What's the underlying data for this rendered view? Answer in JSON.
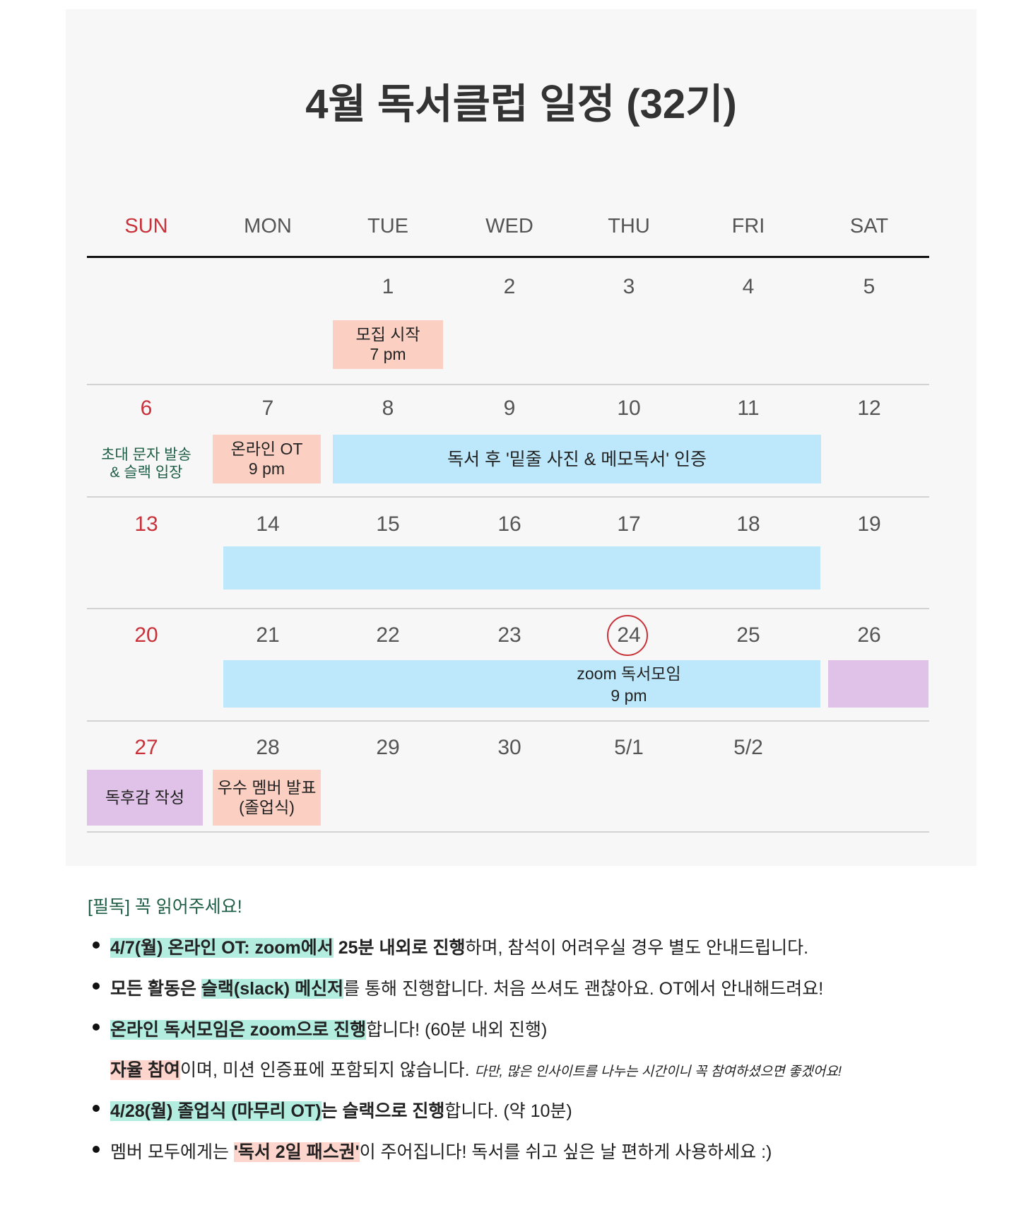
{
  "title": "4월 독서클럽 일정 (32기)",
  "weekdays": [
    "SUN",
    "MON",
    "TUE",
    "WED",
    "THU",
    "FRI",
    "SAT"
  ],
  "weeks": [
    [
      "1",
      "2",
      "3",
      "4",
      "5"
    ],
    [
      "6",
      "7",
      "8",
      "9",
      "10",
      "11",
      "12"
    ],
    [
      "13",
      "14",
      "15",
      "16",
      "17",
      "18",
      "19"
    ],
    [
      "20",
      "21",
      "22",
      "23",
      "24",
      "25",
      "26"
    ],
    [
      "27",
      "28",
      "29",
      "30",
      "5/1",
      "5/2"
    ]
  ],
  "events": {
    "recruit": [
      "모집 시작",
      "7 pm"
    ],
    "invite": [
      "초대 문자 발송",
      "& 슬랙 입장"
    ],
    "orientation": [
      "온라인 OT",
      "9 pm"
    ],
    "reading": [
      "독서 후 '밑줄 사진 & 메모독서' 인증"
    ],
    "zoom": [
      "zoom 독서모임",
      "9 pm"
    ],
    "review": [
      "독후감 작성"
    ],
    "graduation": [
      "우수 멤버 발표",
      "(졸업식)"
    ]
  },
  "notes": {
    "heading": "[필독] 꼭 읽어주세요!",
    "items": [
      [
        "4/7(월) 온라인 OT: zoom에서",
        " 25분 내외로 진행",
        "하며, 참석이 어려우실 경우 별도 안내드립니다."
      ],
      [
        "모든 활동은 ",
        "슬랙(slack) 메신저",
        "를 통해 진행합니다. 처음 쓰셔도 괜찮아요. OT에서 안내해드려요!"
      ],
      [
        "온라인 독서모임은 zoom으로 진행",
        "합니다! (60분 내외 진행)"
      ],
      [
        "자율 참여",
        "이며, 미션 인증표에 포함되지 않습니다. ",
        "다만, 많은 인사이트를 나누는 시간이니 꼭 참여하셨으면 좋겠어요!"
      ],
      [
        "4/28(월) 졸업식 (마무리 OT)",
        "는 슬랙으로 진행",
        "합니다. (약 10분)"
      ],
      [
        "멤버 모두에게는 ",
        "'독서 2일 패스권'",
        "이 주어집니다! 독서를 쉬고 싶은 날 편하게 사용하세요 :)"
      ]
    ]
  }
}
